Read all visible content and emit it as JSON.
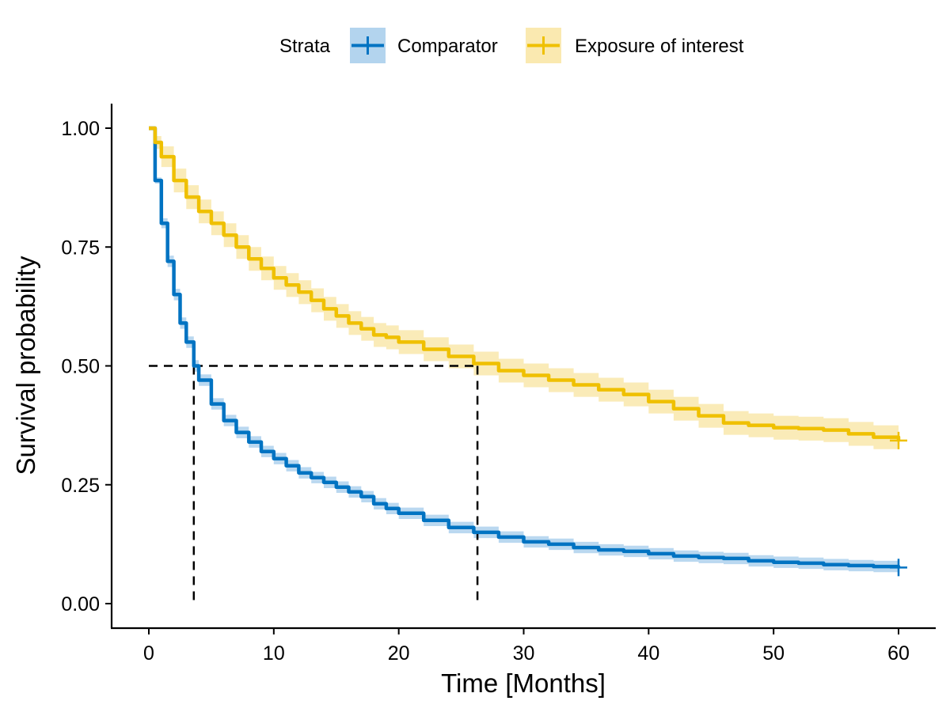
{
  "chart_data": {
    "type": "line",
    "subtype": "kaplan-meier survival curve",
    "xlabel": "Time [Months]",
    "ylabel": "Survival probability",
    "xlim": [
      0,
      60
    ],
    "ylim": [
      0,
      1
    ],
    "x_ticks": [
      0,
      10,
      20,
      30,
      40,
      50,
      60
    ],
    "y_ticks": [
      0,
      0.25,
      0.5,
      0.75,
      1
    ],
    "y_tick_labels": [
      "0.00",
      "0.25",
      "0.50",
      "0.75",
      "1.00"
    ],
    "grid": false,
    "legend": {
      "title": "Strata",
      "placement": "top",
      "entries": [
        "Comparator",
        "Exposure of interest"
      ]
    },
    "series": [
      {
        "name": "Comparator",
        "color": "#0073C2",
        "band_color": "#B3D4EE",
        "x": [
          0,
          0.5,
          1,
          1.5,
          2,
          2.5,
          3,
          3.6,
          4,
          5,
          6,
          7,
          8,
          9,
          10,
          11,
          12,
          13,
          14,
          15,
          16,
          17,
          18,
          19,
          20,
          22,
          24,
          26,
          28,
          30,
          32,
          34,
          36,
          38,
          40,
          42,
          44,
          46,
          48,
          50,
          52,
          54,
          56,
          58,
          60
        ],
        "y": [
          1.0,
          0.89,
          0.8,
          0.72,
          0.65,
          0.59,
          0.55,
          0.5,
          0.47,
          0.42,
          0.385,
          0.36,
          0.34,
          0.32,
          0.305,
          0.29,
          0.275,
          0.265,
          0.255,
          0.245,
          0.235,
          0.225,
          0.21,
          0.2,
          0.19,
          0.175,
          0.16,
          0.15,
          0.14,
          0.13,
          0.125,
          0.118,
          0.113,
          0.11,
          0.105,
          0.1,
          0.097,
          0.095,
          0.09,
          0.087,
          0.085,
          0.082,
          0.08,
          0.078,
          0.076
        ],
        "ci_halfwidth": 0.012,
        "censor_mark": {
          "x": 60,
          "y": 0.076
        }
      },
      {
        "name": "Exposure of interest",
        "color": "#EFC000",
        "band_color": "#FAE9B0",
        "x": [
          0,
          0.5,
          1,
          2,
          3,
          4,
          5,
          6,
          7,
          8,
          9,
          10,
          11,
          12,
          13,
          14,
          15,
          16,
          17,
          18,
          19,
          20,
          22,
          24,
          26,
          28,
          30,
          32,
          34,
          36,
          38,
          40,
          42,
          44,
          46,
          48,
          50,
          52,
          54,
          56,
          58,
          60
        ],
        "y": [
          1.0,
          0.97,
          0.94,
          0.89,
          0.855,
          0.825,
          0.8,
          0.775,
          0.75,
          0.725,
          0.705,
          0.685,
          0.67,
          0.655,
          0.638,
          0.62,
          0.605,
          0.59,
          0.578,
          0.565,
          0.56,
          0.55,
          0.535,
          0.52,
          0.505,
          0.49,
          0.48,
          0.47,
          0.46,
          0.45,
          0.44,
          0.425,
          0.41,
          0.395,
          0.38,
          0.375,
          0.37,
          0.368,
          0.365,
          0.357,
          0.35,
          0.343
        ],
        "ci_halfwidth": 0.025,
        "censor_mark": {
          "x": 60,
          "y": 0.343
        }
      }
    ],
    "median_reference": {
      "y": 0.5,
      "x_values": [
        3.6,
        26.3
      ],
      "style": "dashed",
      "color": "#000000"
    }
  }
}
